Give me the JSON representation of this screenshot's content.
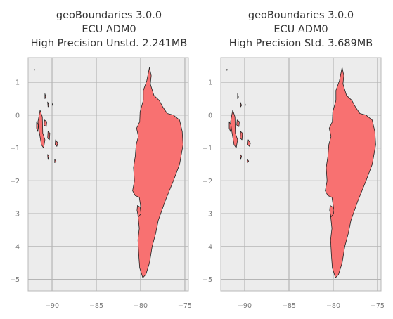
{
  "chart_data": [
    {
      "type": "map",
      "title": [
        "geoBoundaries 3.0.0",
        "ECU ADM0",
        "High Precision Unstd. 2.241MB"
      ],
      "xlabel": "",
      "ylabel": "",
      "xlim": [
        -92.7,
        -74.6
      ],
      "ylim": [
        -5.35,
        1.75
      ],
      "xticks": [
        -90,
        -85,
        -80,
        -75
      ],
      "yticks": [
        1,
        0,
        -1,
        -2,
        -3,
        -4,
        -5
      ],
      "grid": true,
      "fill_color": "#f87171",
      "edge_color": "#222222"
    },
    {
      "type": "map",
      "title": [
        "geoBoundaries 3.0.0",
        "ECU ADM0",
        "High Precision Std. 3.689MB"
      ],
      "xlabel": "",
      "ylabel": "",
      "xlim": [
        -92.7,
        -74.6
      ],
      "ylim": [
        -5.35,
        1.75
      ],
      "xticks": [
        -90,
        -85,
        -80,
        -75
      ],
      "yticks": [
        1,
        0,
        -1,
        -2,
        -3,
        -4,
        -5
      ],
      "grid": true,
      "fill_color": "#f87171",
      "edge_color": "#222222"
    }
  ],
  "shapes": {
    "mainland": [
      [
        -79.0,
        1.45
      ],
      [
        -78.8,
        1.2
      ],
      [
        -78.9,
        0.95
      ],
      [
        -78.5,
        0.6
      ],
      [
        -77.9,
        0.45
      ],
      [
        -77.5,
        0.25
      ],
      [
        -77.0,
        0.05
      ],
      [
        -76.3,
        0.0
      ],
      [
        -75.6,
        -0.15
      ],
      [
        -75.3,
        -0.5
      ],
      [
        -75.2,
        -0.9
      ],
      [
        -75.6,
        -1.5
      ],
      [
        -76.3,
        -2.0
      ],
      [
        -77.2,
        -2.6
      ],
      [
        -78.0,
        -3.2
      ],
      [
        -78.3,
        -3.6
      ],
      [
        -78.7,
        -4.0
      ],
      [
        -79.0,
        -4.5
      ],
      [
        -79.4,
        -4.85
      ],
      [
        -79.75,
        -4.95
      ],
      [
        -80.1,
        -4.65
      ],
      [
        -80.2,
        -4.3
      ],
      [
        -80.3,
        -3.8
      ],
      [
        -80.15,
        -3.45
      ],
      [
        -80.3,
        -3.05
      ],
      [
        -79.95,
        -2.85
      ],
      [
        -80.15,
        -2.5
      ],
      [
        -80.6,
        -2.45
      ],
      [
        -80.9,
        -2.3
      ],
      [
        -80.7,
        -2.0
      ],
      [
        -80.8,
        -1.6
      ],
      [
        -80.6,
        -1.25
      ],
      [
        -80.5,
        -0.9
      ],
      [
        -80.25,
        -0.65
      ],
      [
        -80.45,
        -0.4
      ],
      [
        -80.1,
        -0.2
      ],
      [
        -80.05,
        0.1
      ],
      [
        -79.7,
        0.45
      ],
      [
        -79.7,
        0.75
      ],
      [
        -79.3,
        1.05
      ],
      [
        -79.0,
        1.45
      ]
    ],
    "puna": [
      [
        -80.35,
        -2.75
      ],
      [
        -80.05,
        -2.8
      ],
      [
        -79.95,
        -3.0
      ],
      [
        -80.25,
        -3.1
      ],
      [
        -80.4,
        -2.9
      ],
      [
        -80.35,
        -2.75
      ]
    ],
    "isabela": [
      [
        -91.35,
        0.15
      ],
      [
        -91.1,
        -0.05
      ],
      [
        -91.05,
        -0.55
      ],
      [
        -90.8,
        -0.75
      ],
      [
        -90.95,
        -1.0
      ],
      [
        -91.2,
        -0.9
      ],
      [
        -91.45,
        -0.5
      ],
      [
        -91.6,
        -0.2
      ],
      [
        -91.35,
        0.15
      ]
    ],
    "fernandina": [
      [
        -91.75,
        -0.2
      ],
      [
        -91.55,
        -0.3
      ],
      [
        -91.6,
        -0.5
      ],
      [
        -91.75,
        -0.4
      ],
      [
        -91.75,
        -0.2
      ]
    ],
    "santacruz": [
      [
        -90.45,
        -0.5
      ],
      [
        -90.25,
        -0.55
      ],
      [
        -90.3,
        -0.75
      ],
      [
        -90.5,
        -0.7
      ],
      [
        -90.45,
        -0.5
      ]
    ],
    "santiago": [
      [
        -90.85,
        -0.15
      ],
      [
        -90.6,
        -0.2
      ],
      [
        -90.65,
        -0.35
      ],
      [
        -90.9,
        -0.3
      ],
      [
        -90.85,
        -0.15
      ]
    ],
    "sancristobal": [
      [
        -89.6,
        -0.75
      ],
      [
        -89.35,
        -0.85
      ],
      [
        -89.45,
        -0.95
      ],
      [
        -89.65,
        -0.9
      ],
      [
        -89.6,
        -0.75
      ]
    ],
    "floreana": [
      [
        -90.5,
        -1.2
      ],
      [
        -90.35,
        -1.25
      ],
      [
        -90.45,
        -1.35
      ],
      [
        -90.5,
        -1.2
      ]
    ],
    "espanola": [
      [
        -89.7,
        -1.35
      ],
      [
        -89.55,
        -1.4
      ],
      [
        -89.7,
        -1.45
      ],
      [
        -89.7,
        -1.35
      ]
    ],
    "genovesa": [
      [
        -89.95,
        0.35
      ],
      [
        -89.9,
        0.3
      ],
      [
        -89.97,
        0.3
      ],
      [
        -89.95,
        0.35
      ]
    ],
    "marchena": [
      [
        -90.5,
        0.4
      ],
      [
        -90.35,
        0.3
      ],
      [
        -90.45,
        0.25
      ],
      [
        -90.5,
        0.4
      ]
    ],
    "pinta": [
      [
        -90.8,
        0.65
      ],
      [
        -90.7,
        0.55
      ],
      [
        -90.8,
        0.5
      ],
      [
        -90.8,
        0.65
      ]
    ],
    "darwin": [
      [
        -92.0,
        1.4
      ],
      [
        -91.95,
        1.38
      ],
      [
        -92.0,
        1.36
      ],
      [
        -92.0,
        1.4
      ]
    ]
  }
}
